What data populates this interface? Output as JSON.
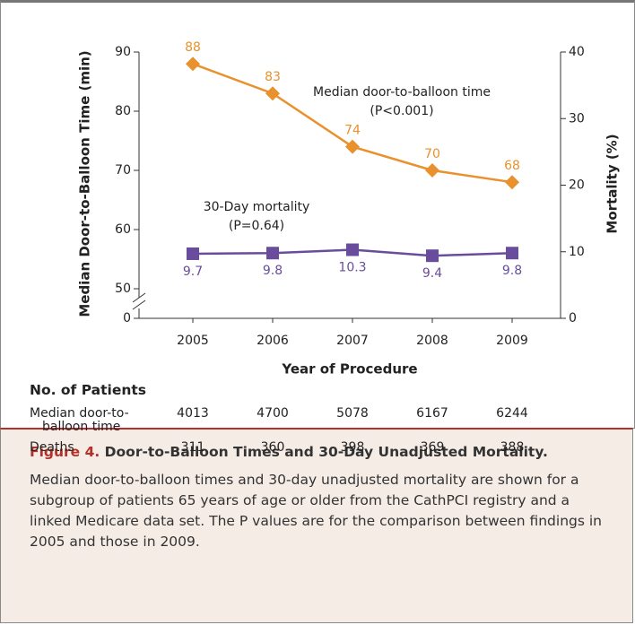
{
  "chart_data": {
    "type": "line",
    "categories": [
      "2005",
      "2006",
      "2007",
      "2008",
      "2009"
    ],
    "xlabel": "Year of Procedure",
    "ylabel": "Median Door-to-Balloon Time (min)",
    "y2label": "Mortality (%)",
    "ylim": [
      0,
      90
    ],
    "ybreak": [
      0,
      50
    ],
    "yticks": [
      0,
      50,
      60,
      70,
      80,
      90
    ],
    "y2lim": [
      0,
      40
    ],
    "y2ticks": [
      0,
      10,
      20,
      30,
      40
    ],
    "series": [
      {
        "name": "Median door-to-balloon time",
        "note": "(P<0.001)",
        "color": "#e8912d",
        "marker": "diamond",
        "values": [
          88,
          83,
          74,
          70,
          68
        ]
      },
      {
        "name": "30-Day mortality",
        "note": "(P=0.64)",
        "color": "#6a4c9c",
        "marker": "square",
        "axis": "y2",
        "values": [
          9.7,
          9.8,
          10.3,
          9.4,
          9.8
        ]
      }
    ]
  },
  "patients_table": {
    "title": "No. of Patients",
    "rows": [
      {
        "label": "Median door-to-balloon time",
        "values": [
          4013,
          4700,
          5078,
          6167,
          6244
        ]
      },
      {
        "label": "Deaths",
        "values": [
          311,
          360,
          398,
          369,
          388
        ]
      }
    ]
  },
  "caption": {
    "label": "Figure 4.",
    "title": "Door-to-Balloon Times and 30-Day Unadjusted Mortality.",
    "text": "Median door-to-balloon times and 30-day unadjusted mortality are shown for a subgroup of patients 65 years of age or older from the CathPCI registry and a linked Medicare data set. The P values are for the comparison between findings in 2005 and those in 2009."
  }
}
